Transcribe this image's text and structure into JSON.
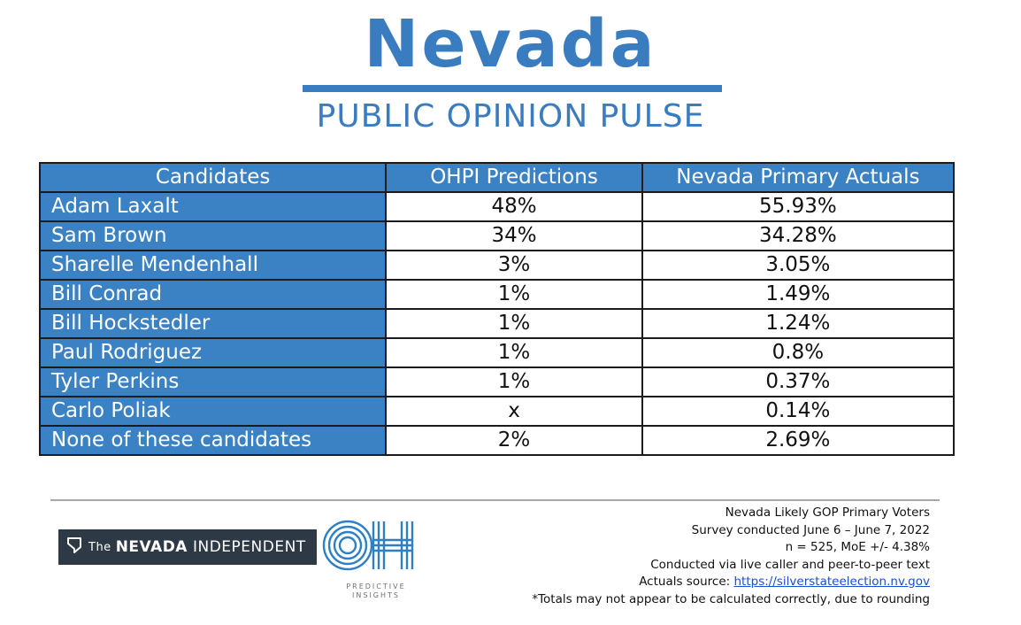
{
  "header": {
    "title": "Nevada",
    "subtitle": "PUBLIC OPINION PULSE"
  },
  "table": {
    "columns": [
      "Candidates",
      "OHPI Predictions",
      "Nevada Primary Actuals"
    ],
    "rows": [
      {
        "name": "Adam Laxalt",
        "prediction": "48%",
        "actual": "55.93%"
      },
      {
        "name": "Sam Brown",
        "prediction": "34%",
        "actual": "34.28%"
      },
      {
        "name": "Sharelle Mendenhall",
        "prediction": "3%",
        "actual": "3.05%"
      },
      {
        "name": "Bill Conrad",
        "prediction": "1%",
        "actual": "1.49%"
      },
      {
        "name": "Bill Hockstedler",
        "prediction": "1%",
        "actual": "1.24%"
      },
      {
        "name": "Paul Rodriguez",
        "prediction": "1%",
        "actual": "0.8%"
      },
      {
        "name": "Tyler Perkins",
        "prediction": "1%",
        "actual": "0.37%"
      },
      {
        "name": "Carlo Poliak",
        "prediction": "x",
        "actual": "0.14%"
      },
      {
        "name": "None of these candidates",
        "prediction": "2%",
        "actual": "2.69%"
      }
    ]
  },
  "chart_data": {
    "type": "table",
    "columns": [
      "Candidates",
      "OHPI Predictions",
      "Nevada Primary Actuals"
    ],
    "rows": [
      [
        "Adam Laxalt",
        "48%",
        "55.93%"
      ],
      [
        "Sam Brown",
        "34%",
        "34.28%"
      ],
      [
        "Sharelle Mendenhall",
        "3%",
        "3.05%"
      ],
      [
        "Bill Conrad",
        "1%",
        "1.49%"
      ],
      [
        "Bill Hockstedler",
        "1%",
        "1.24%"
      ],
      [
        "Paul Rodriguez",
        "1%",
        "0.8%"
      ],
      [
        "Tyler Perkins",
        "1%",
        "0.37%"
      ],
      [
        "Carlo Poliak",
        "x",
        "0.14%"
      ],
      [
        "None of these candidates",
        "2%",
        "2.69%"
      ]
    ]
  },
  "footer": {
    "logo_the_nevada_independent": {
      "the": "The",
      "bold": "NEVADA",
      "light": "INDEPENDENT",
      "icon": "nevada-shape-icon"
    },
    "logo_oh": {
      "letters": "OH",
      "caption_line1": "PREDICTIVE",
      "caption_line2": "INSIGHTS"
    },
    "notes": {
      "line1": "Nevada Likely GOP Primary Voters",
      "line2": "Survey conducted June 6 – June 7, 2022",
      "line3": "n = 525, MoE +/- 4.38%",
      "line4": "Conducted via live caller and peer-to-peer text",
      "source_label": "Actuals source: ",
      "source_link": "https://silverstateelection.nv.gov",
      "line6": "*Totals may not appear to be calculated correctly, due to rounding"
    }
  },
  "colors": {
    "brand_blue": "#3a7cc0",
    "header_cell_blue": "#3b82c4",
    "logo_dark": "#2d3a45"
  }
}
